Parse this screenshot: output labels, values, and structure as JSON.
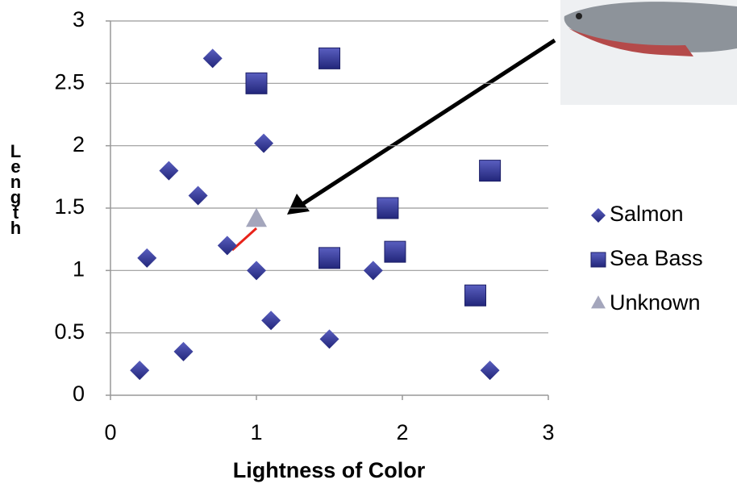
{
  "chart_data": {
    "type": "scatter",
    "x_label": "Lightness of Color",
    "y_label": "Length",
    "xlim": [
      0,
      3
    ],
    "xticks": [
      0,
      1,
      2,
      3
    ],
    "ylim": [
      0,
      3
    ],
    "yticks": [
      0,
      0.5,
      1,
      1.5,
      2,
      2.5,
      3
    ],
    "grid": true,
    "legend": "right",
    "series": [
      {
        "name": "Salmon",
        "color": "#2e3192",
        "marker": "diamond",
        "x": [
          0.7,
          0.4,
          0.6,
          1.05,
          0.8,
          0.25,
          1.0,
          1.1,
          0.5,
          0.2,
          1.5,
          1.8,
          2.6
        ],
        "values": [
          2.7,
          1.8,
          1.6,
          2.02,
          1.2,
          1.1,
          1.0,
          0.6,
          0.35,
          0.2,
          0.45,
          1.0,
          0.2
        ]
      },
      {
        "name": "Sea Bass",
        "color": "#2e3192",
        "marker": "square",
        "x": [
          1.0,
          1.5,
          2.6,
          1.9,
          1.95,
          1.5,
          2.5
        ],
        "values": [
          2.5,
          2.7,
          1.8,
          1.5,
          1.15,
          1.1,
          0.8
        ]
      },
      {
        "name": "Unknown",
        "color": "#a4a6bc",
        "marker": "triangle",
        "x": [
          1.0
        ],
        "values": [
          1.4
        ]
      }
    ]
  }
}
